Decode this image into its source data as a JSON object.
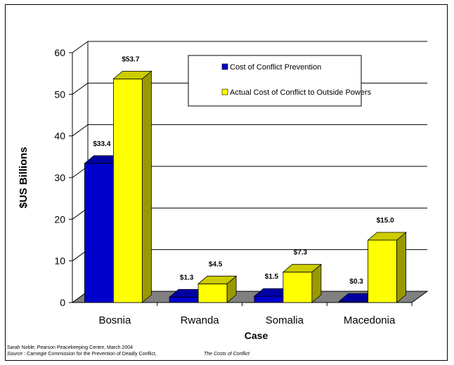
{
  "chart_data": {
    "type": "bar",
    "categories": [
      "Bosnia",
      "Rwanda",
      "Somalia",
      "Macedonia"
    ],
    "series": [
      {
        "name": "Cost of Conflict Prevention",
        "color": "#0000cc",
        "values": [
          33.4,
          1.3,
          1.5,
          0.3
        ],
        "labels": [
          "$33.4",
          "$1.3",
          "$1.5",
          "$0.3"
        ]
      },
      {
        "name": "Actual Cost of Conflict to Outside Powers",
        "color": "#ffff00",
        "values": [
          53.7,
          4.5,
          7.3,
          15.0
        ],
        "labels": [
          "$53.7",
          "$4.5",
          "$7.3",
          "$15.0"
        ]
      }
    ],
    "xlabel": "Case",
    "ylabel": "$US Billions",
    "ylim": [
      0,
      60
    ],
    "yticks": [
      "0",
      "10",
      "20",
      "30",
      "40",
      "50",
      "60"
    ],
    "grid": true,
    "legend_position": "top-right",
    "three_d": true
  },
  "footer": {
    "line1": "Sarah Noble, Pearson Peacekeeping Centre, March 2004",
    "source_label": "Source",
    "source_text": " : Carnegie Commission for the Prevention of Deadly Conflict,",
    "source_title": "The Costs of Conflict"
  }
}
